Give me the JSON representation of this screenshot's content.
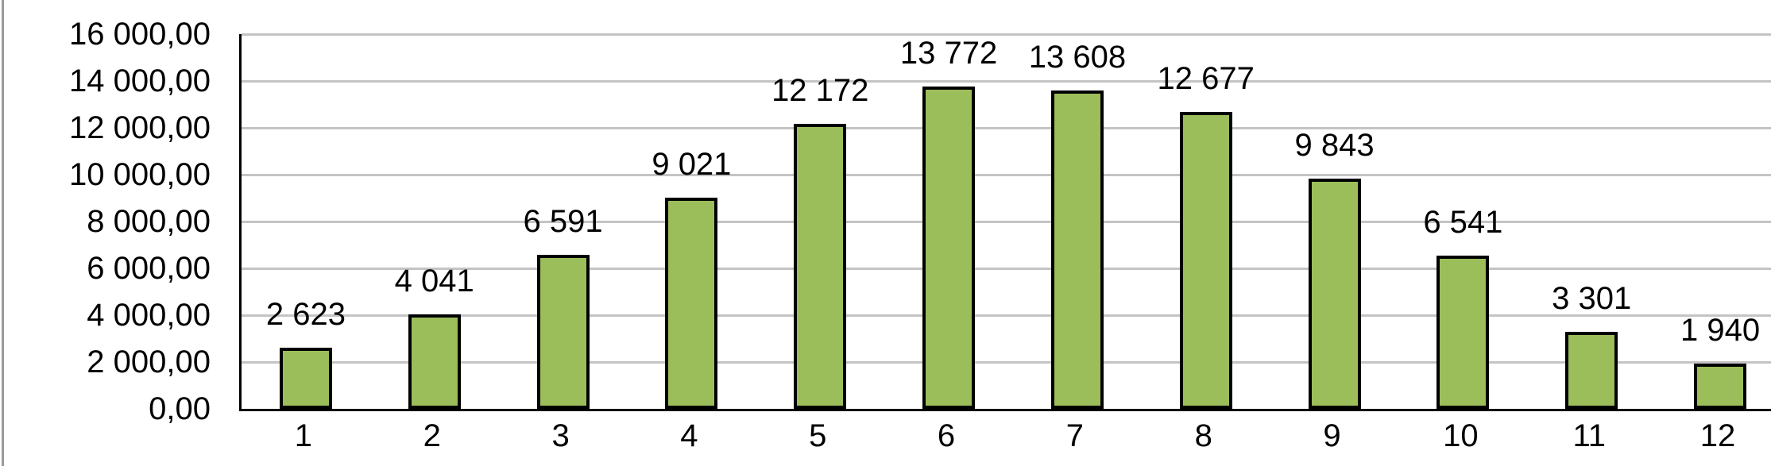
{
  "chart_data": {
    "type": "bar",
    "title": "",
    "xlabel": "",
    "ylabel": "",
    "categories": [
      "1",
      "2",
      "3",
      "4",
      "5",
      "6",
      "7",
      "8",
      "9",
      "10",
      "11",
      "12"
    ],
    "values": [
      2623,
      4041,
      6591,
      9021,
      12172,
      13772,
      13608,
      12677,
      9843,
      6541,
      3301,
      1940
    ],
    "value_labels": [
      "2 623",
      "4 041",
      "6 591",
      "9 021",
      "12 172",
      "13 772",
      "13 608",
      "12 677",
      "9 843",
      "6 541",
      "3 301",
      "1 940"
    ],
    "ylim": [
      0,
      16000
    ],
    "y_step": 2000,
    "y_tick_labels": [
      "16 000,00",
      "14 000,00",
      "12 000,00",
      "10 000,00",
      "8 000,00",
      "6 000,00",
      "4 000,00",
      "2 000,00",
      "0,00"
    ],
    "grid": true,
    "legend": "none",
    "colors": {
      "bar_fill": "#9BBD5A",
      "bar_border": "#000000",
      "gridline": "#C4C4C4",
      "axis": "#000000",
      "text": "#000000",
      "background": "#FFFFFF",
      "left_edge_line": "#9A9A9A"
    }
  }
}
